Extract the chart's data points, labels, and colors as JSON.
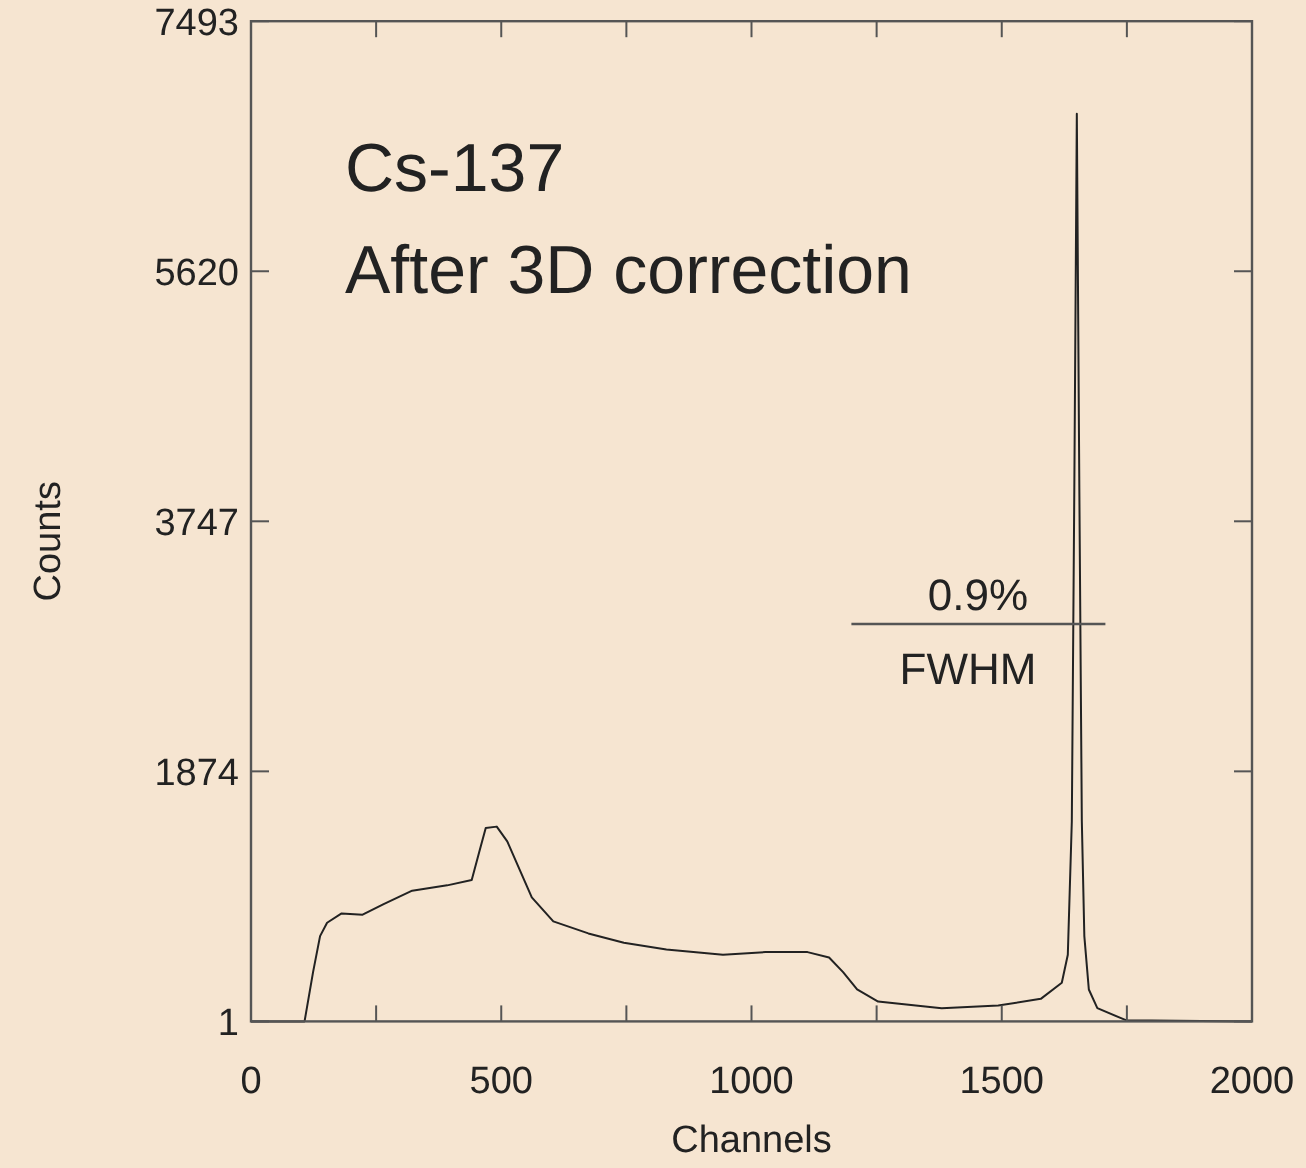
{
  "chart_data": {
    "type": "line",
    "xlabel": "Channels",
    "ylabel": "Counts",
    "annotations": [
      "Cs-137",
      "After 3D correction",
      "0.9%",
      "FWHM"
    ],
    "xlim": [
      0,
      2000
    ],
    "xticks": [
      0,
      {
        "value": 250,
        "label": null
      },
      500,
      {
        "value": 750,
        "label": null
      },
      1000,
      {
        "value": 1250,
        "label": null
      },
      1500,
      {
        "value": 1750,
        "label": null
      },
      2000
    ],
    "ylim": [
      1,
      7493
    ],
    "yticks": [
      1,
      1874,
      3747,
      5620,
      7493
    ],
    "grid": false,
    "marker": "none",
    "line_style": "solid",
    "series": [
      {
        "color": "#222222",
        "x": [
          0,
          107,
          124,
          138,
          152,
          181,
          223,
          265,
          322,
          392,
          441,
          456,
          469,
          491,
          512,
          533,
          561,
          604,
          674,
          745,
          830,
          943,
          1028,
          1112,
          1155,
          1183,
          1211,
          1253,
          1380,
          1493,
          1578,
          1620,
          1632,
          1640,
          1645,
          1650,
          1655,
          1660,
          1665,
          1674,
          1691,
          1748,
          2000
        ],
        "values": [
          1,
          1,
          370,
          640,
          740,
          810,
          800,
          880,
          980,
          1020,
          1060,
          1270,
          1450,
          1460,
          1350,
          1170,
          930,
          750,
          660,
          590,
          540,
          500,
          520,
          520,
          480,
          370,
          240,
          150,
          100,
          120,
          170,
          290,
          500,
          1500,
          4000,
          6800,
          4000,
          1500,
          640,
          240,
          100,
          10,
          1
        ]
      }
    ]
  }
}
